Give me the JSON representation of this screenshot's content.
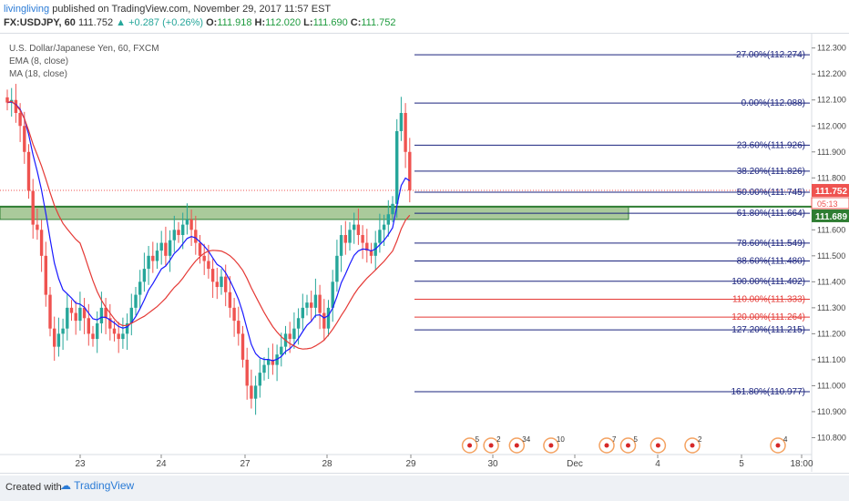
{
  "header": {
    "author": "livingliving",
    "published_text": "published on TradingView.com, November 29, 2017 11:57 EST",
    "symbol": "FX:USDJPY, 60",
    "price": "111.752",
    "change": "+0.287 (+0.26%)",
    "open_label": "O:",
    "open": "111.918",
    "high_label": "H:",
    "high": "112.020",
    "low_label": "L:",
    "low": "111.690",
    "close_label": "C:",
    "close": "111.752"
  },
  "legend": {
    "title": "U.S. Dollar/Japanese Yen, 60, FXCM",
    "ema": "EMA (8, close)",
    "ma": "MA (18, close)"
  },
  "footer": {
    "created": "Created with",
    "brand": "TradingView"
  },
  "colors": {
    "up": "#26a69a",
    "down": "#ef5350",
    "ema": "#1a1aff",
    "ma": "#e53935",
    "fib_blue": "#1a237e",
    "fib_red": "#e53935",
    "zone": "#8db87a",
    "zone_line": "#2e7d32"
  },
  "chart_data": {
    "type": "candlestick",
    "ylim": [
      110.77,
      112.32
    ],
    "y_ticks": [
      110.8,
      110.9,
      111.0,
      111.1,
      111.2,
      111.3,
      111.4,
      111.5,
      111.6,
      111.7,
      111.8,
      111.9,
      112.0,
      112.1,
      112.2,
      112.3
    ],
    "x_labels": [
      "23",
      "24",
      "27",
      "28",
      "29",
      "30",
      "Dec",
      "4",
      "5",
      "18:00"
    ],
    "price_labels": {
      "current": "111.752",
      "countdown": "05:13",
      "zone_top": "111.689"
    },
    "fib_levels": [
      {
        "label": "-27.00%(112.274)",
        "price": 112.274,
        "color": "blue"
      },
      {
        "label": "0.00%(112.088)",
        "price": 112.088,
        "color": "blue"
      },
      {
        "label": "23.60%(111.926)",
        "price": 111.926,
        "color": "blue"
      },
      {
        "label": "38.20%(111.826)",
        "price": 111.826,
        "color": "blue"
      },
      {
        "label": "50.00%(111.745)",
        "price": 111.745,
        "color": "blue"
      },
      {
        "label": "61.80%(111.664)",
        "price": 111.664,
        "color": "blue"
      },
      {
        "label": "78.60%(111.549)",
        "price": 111.549,
        "color": "blue"
      },
      {
        "label": "88.60%(111.480)",
        "price": 111.48,
        "color": "blue"
      },
      {
        "label": "100.00%(111.402)",
        "price": 111.402,
        "color": "blue"
      },
      {
        "label": "110.00%(111.333)",
        "price": 111.333,
        "color": "red"
      },
      {
        "label": "120.00%(111.264)",
        "price": 111.264,
        "color": "red"
      },
      {
        "label": "127.20%(111.215)",
        "price": 111.215,
        "color": "blue"
      },
      {
        "label": "161.80%(110.977)",
        "price": 110.977,
        "color": "blue"
      }
    ],
    "zone": {
      "top": 111.689,
      "bottom": 111.64
    },
    "closes": [
      112.09,
      112.1,
      112.05,
      112.0,
      111.9,
      111.75,
      111.62,
      111.6,
      111.5,
      111.35,
      111.22,
      111.15,
      111.2,
      111.22,
      111.3,
      111.28,
      111.25,
      111.3,
      111.26,
      111.2,
      111.18,
      111.24,
      111.3,
      111.26,
      111.22,
      111.2,
      111.18,
      111.2,
      111.24,
      111.3,
      111.35,
      111.4,
      111.45,
      111.5,
      111.48,
      111.52,
      111.55,
      111.5,
      111.56,
      111.6,
      111.58,
      111.62,
      111.64,
      111.6,
      111.55,
      111.5,
      111.48,
      111.45,
      111.4,
      111.38,
      111.42,
      111.36,
      111.3,
      111.25,
      111.2,
      111.1,
      111.0,
      110.95,
      111.0,
      111.05,
      111.08,
      111.1,
      111.08,
      111.12,
      111.15,
      111.2,
      111.18,
      111.22,
      111.26,
      111.3,
      111.32,
      111.3,
      111.35,
      111.28,
      111.22,
      111.3,
      111.4,
      111.5,
      111.58,
      111.55,
      111.6,
      111.62,
      111.58,
      111.55,
      111.52,
      111.5,
      111.55,
      111.6,
      111.62,
      111.66,
      111.7,
      111.98,
      112.05,
      111.9,
      111.752
    ],
    "markers": [
      {
        "x_index": 108,
        "label": "5"
      },
      {
        "x_index": 113,
        "label": "2"
      },
      {
        "x_index": 119,
        "label": "34"
      },
      {
        "x_index": 127,
        "label": "10"
      },
      {
        "x_index": 140,
        "label": "7"
      },
      {
        "x_index": 145,
        "label": "5"
      },
      {
        "x_index": 152,
        "label": ""
      },
      {
        "x_index": 160,
        "label": "2"
      },
      {
        "x_index": 180,
        "label": "4"
      }
    ]
  }
}
